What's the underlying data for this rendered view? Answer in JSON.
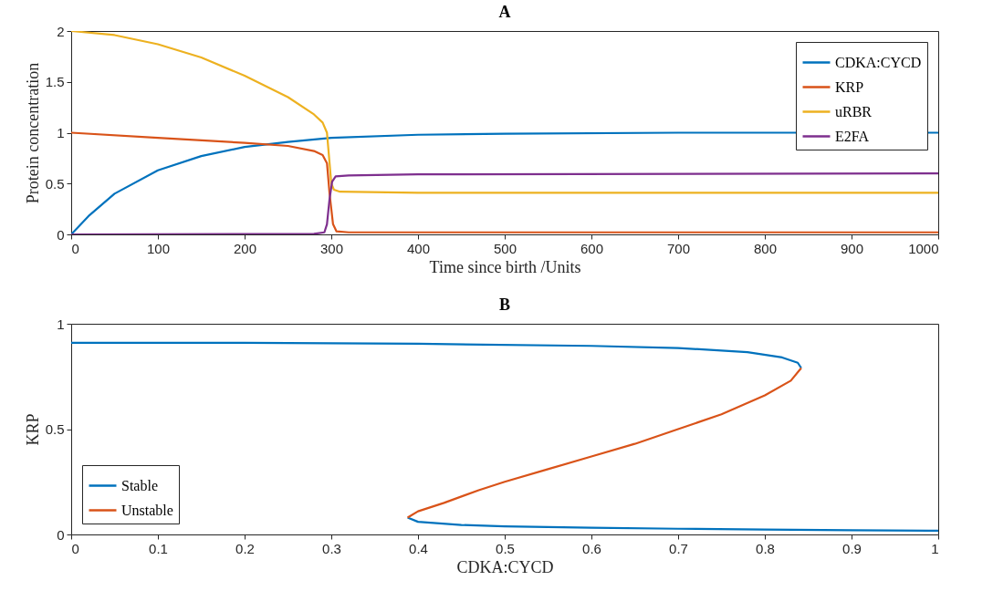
{
  "chart_data": [
    {
      "type": "line",
      "title": "A",
      "xlabel": "Time since birth /Units",
      "ylabel": "Protein concentration",
      "xlim": [
        0,
        1000
      ],
      "xticks": [
        0,
        100,
        200,
        300,
        400,
        500,
        600,
        700,
        800,
        900,
        1000
      ],
      "ylim": [
        0,
        2
      ],
      "yticks": [
        0,
        0.5,
        1,
        1.5,
        2
      ],
      "legend": "top right",
      "grid": false,
      "series": [
        {
          "name": "CDKA:CYCD",
          "color": "#0072bd",
          "x": [
            0,
            20,
            50,
            100,
            150,
            200,
            250,
            300,
            400,
            500,
            700,
            1000
          ],
          "values": [
            0,
            0.18,
            0.4,
            0.63,
            0.77,
            0.86,
            0.91,
            0.95,
            0.98,
            0.99,
            1,
            1
          ]
        },
        {
          "name": "KRP",
          "color": "#d95319",
          "x": [
            0,
            100,
            200,
            250,
            280,
            290,
            295,
            298,
            302,
            306,
            320,
            1000
          ],
          "values": [
            1,
            0.95,
            0.9,
            0.87,
            0.82,
            0.78,
            0.7,
            0.4,
            0.1,
            0.03,
            0.02,
            0.02
          ]
        },
        {
          "name": "uRBR",
          "color": "#edb120",
          "x": [
            0,
            50,
            100,
            150,
            200,
            250,
            280,
            290,
            295,
            298,
            300,
            303,
            310,
            400,
            1000
          ],
          "values": [
            2,
            1.96,
            1.87,
            1.74,
            1.56,
            1.35,
            1.18,
            1.1,
            1,
            0.7,
            0.5,
            0.44,
            0.42,
            0.41,
            0.41
          ]
        },
        {
          "name": "E2FA",
          "color": "#7e2f8e",
          "x": [
            0,
            280,
            292,
            295,
            298,
            301,
            305,
            320,
            400,
            1000
          ],
          "values": [
            0,
            0.005,
            0.02,
            0.1,
            0.35,
            0.52,
            0.57,
            0.58,
            0.59,
            0.6
          ]
        }
      ]
    },
    {
      "type": "line",
      "title": "B",
      "xlabel": "CDKA:CYCD",
      "ylabel": "KRP",
      "xlim": [
        0,
        1
      ],
      "xticks": [
        0,
        0.1,
        0.2,
        0.3,
        0.4,
        0.5,
        0.6,
        0.7,
        0.8,
        0.9,
        1
      ],
      "ylim": [
        0,
        1
      ],
      "yticks": [
        0,
        0.5,
        1
      ],
      "legend": "bottom left",
      "grid": false,
      "series": [
        {
          "name": "Stable",
          "color": "#0072bd",
          "x": [
            0,
            0.2,
            0.4,
            0.6,
            0.7,
            0.78,
            0.82,
            0.838,
            0.842,
            null,
            0.388,
            0.4,
            0.45,
            0.5,
            0.6,
            0.7,
            0.8,
            0.9,
            1
          ],
          "values": [
            0.91,
            0.91,
            0.905,
            0.895,
            0.885,
            0.865,
            0.84,
            0.815,
            0.79,
            null,
            0.08,
            0.06,
            0.045,
            0.038,
            0.032,
            0.027,
            0.023,
            0.02,
            0.018
          ]
        },
        {
          "name": "Unstable",
          "color": "#d95319",
          "x": [
            0.388,
            0.4,
            0.43,
            0.47,
            0.5,
            0.55,
            0.6,
            0.65,
            0.7,
            0.75,
            0.8,
            0.83,
            0.842
          ],
          "values": [
            0.08,
            0.11,
            0.15,
            0.21,
            0.25,
            0.31,
            0.37,
            0.43,
            0.5,
            0.57,
            0.66,
            0.73,
            0.79
          ]
        }
      ]
    }
  ]
}
